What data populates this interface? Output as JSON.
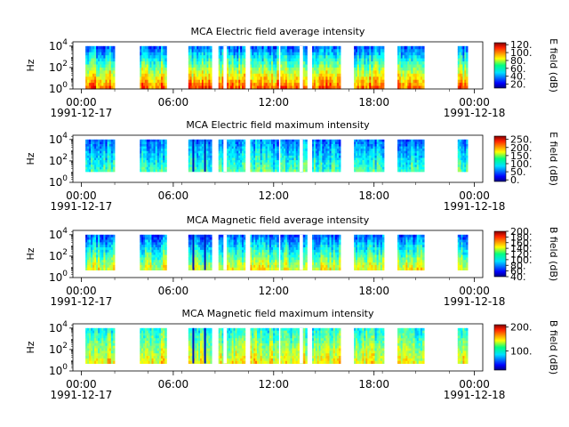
{
  "chart_data": [
    {
      "type": "heatmap",
      "title": "MCA  Electric field average intensity",
      "ylabel": "Hz",
      "y_ticks": [
        {
          "base": "10",
          "exp": "0"
        },
        {
          "base": "10",
          "exp": "2"
        },
        {
          "base": "10",
          "exp": "4"
        }
      ],
      "x_ticks": [
        "00:00",
        "06:00",
        "12:00",
        "18:00",
        "00:00"
      ],
      "x_start_date": "1991-12-17",
      "x_end_date": "1991-12-18",
      "colorbar_label": "E field (dB)",
      "colorbar_ticks": [
        "20.",
        "40.",
        "60.",
        "80.",
        "100.",
        "120."
      ],
      "clim": [
        10,
        125
      ],
      "data_blocks_hours": [
        [
          0.75,
          1.6
        ],
        [
          1.6,
          2.5
        ],
        [
          4.0,
          4.7
        ],
        [
          4.7,
          5.6
        ],
        [
          6.9,
          7.6
        ],
        [
          7.6,
          8.3
        ],
        [
          8.7,
          9.5
        ],
        [
          9.5,
          10.3
        ],
        [
          10.6,
          11.4
        ],
        [
          11.4,
          12.3
        ],
        [
          12.4,
          13.1
        ],
        [
          13.1,
          14.0
        ],
        [
          14.3,
          15.0
        ],
        [
          15.0,
          16.0
        ],
        [
          16.8,
          17.6
        ],
        [
          17.6,
          18.6
        ],
        [
          19.4,
          20.1
        ],
        [
          20.1,
          21.0
        ],
        [
          23.0,
          23.6
        ]
      ],
      "gaps_hours": [
        [
          9.0,
          9.2
        ],
        [
          13.55,
          13.75
        ]
      ],
      "frequency_range_hz": [
        1,
        10000
      ]
    },
    {
      "type": "heatmap",
      "title": "MCA  Electric field maximum intensity",
      "ylabel": "Hz",
      "y_ticks": [
        {
          "base": "10",
          "exp": "0"
        },
        {
          "base": "10",
          "exp": "2"
        },
        {
          "base": "10",
          "exp": "4"
        }
      ],
      "x_ticks": [
        "00:00",
        "06:00",
        "12:00",
        "18:00",
        "00:00"
      ],
      "x_start_date": "1991-12-17",
      "x_end_date": "1991-12-18",
      "colorbar_label": "E field (dB)",
      "colorbar_ticks": [
        "0.",
        "50.",
        "100.",
        "150.",
        "200.",
        "250."
      ],
      "clim": [
        -10,
        270
      ],
      "data_blocks_hours": [
        [
          0.75,
          1.6
        ],
        [
          1.6,
          2.5
        ],
        [
          4.0,
          4.7
        ],
        [
          4.7,
          5.6
        ],
        [
          6.9,
          7.6
        ],
        [
          7.6,
          8.3
        ],
        [
          8.7,
          9.5
        ],
        [
          9.5,
          10.3
        ],
        [
          10.6,
          11.4
        ],
        [
          11.4,
          12.3
        ],
        [
          12.4,
          13.1
        ],
        [
          13.1,
          14.0
        ],
        [
          14.3,
          15.0
        ],
        [
          15.0,
          16.0
        ],
        [
          16.8,
          17.6
        ],
        [
          17.6,
          18.6
        ],
        [
          19.4,
          20.1
        ],
        [
          20.1,
          21.0
        ],
        [
          23.0,
          23.6
        ]
      ],
      "gaps_hours": [
        [
          9.0,
          9.2
        ],
        [
          13.55,
          13.75
        ]
      ],
      "frequency_range_hz": [
        10,
        10000
      ]
    },
    {
      "type": "heatmap",
      "title": "MCA  Magnetic field average intensity",
      "ylabel": "Hz",
      "y_ticks": [
        {
          "base": "10",
          "exp": "0"
        },
        {
          "base": "10",
          "exp": "2"
        },
        {
          "base": "10",
          "exp": "4"
        }
      ],
      "x_ticks": [
        "00:00",
        "06:00",
        "12:00",
        "18:00",
        "00:00"
      ],
      "x_start_date": "1991-12-17",
      "x_end_date": "1991-12-18",
      "colorbar_label": "B field (dB)",
      "colorbar_ticks": [
        "40.",
        "60.",
        "80.",
        "100.",
        "120.",
        "140.",
        "160.",
        "180.",
        "200."
      ],
      "clim": [
        40,
        200
      ],
      "data_blocks_hours": [
        [
          0.75,
          1.6
        ],
        [
          1.6,
          2.5
        ],
        [
          4.0,
          4.7
        ],
        [
          4.7,
          5.6
        ],
        [
          6.9,
          7.6
        ],
        [
          7.6,
          8.3
        ],
        [
          8.7,
          9.5
        ],
        [
          9.5,
          10.3
        ],
        [
          10.6,
          11.4
        ],
        [
          11.4,
          12.3
        ],
        [
          12.4,
          13.1
        ],
        [
          13.1,
          14.0
        ],
        [
          14.3,
          15.0
        ],
        [
          15.0,
          16.0
        ],
        [
          16.8,
          17.6
        ],
        [
          17.6,
          18.6
        ],
        [
          19.4,
          20.1
        ],
        [
          20.1,
          21.0
        ],
        [
          23.0,
          23.6
        ]
      ],
      "gaps_hours": [
        [
          9.0,
          9.2
        ],
        [
          13.55,
          13.75
        ]
      ],
      "frequency_range_hz": [
        5,
        10000
      ]
    },
    {
      "type": "heatmap",
      "title": "MCA  Magnetic field maximum intensity",
      "ylabel": "Hz",
      "y_ticks": [
        {
          "base": "10",
          "exp": "0"
        },
        {
          "base": "10",
          "exp": "2"
        },
        {
          "base": "10",
          "exp": "4"
        }
      ],
      "x_ticks": [
        "00:00",
        "06:00",
        "12:00",
        "18:00",
        "00:00"
      ],
      "x_start_date": "1991-12-17",
      "x_end_date": "1991-12-18",
      "colorbar_label": "B field (dB)",
      "colorbar_ticks": [
        "100.",
        "200."
      ],
      "clim": [
        20,
        210
      ],
      "data_blocks_hours": [
        [
          0.75,
          1.6
        ],
        [
          1.6,
          2.5
        ],
        [
          4.0,
          4.7
        ],
        [
          4.7,
          5.6
        ],
        [
          6.9,
          7.6
        ],
        [
          7.6,
          8.3
        ],
        [
          8.7,
          9.5
        ],
        [
          9.5,
          10.3
        ],
        [
          10.6,
          11.4
        ],
        [
          11.4,
          12.3
        ],
        [
          12.4,
          13.1
        ],
        [
          13.1,
          14.0
        ],
        [
          14.3,
          15.0
        ],
        [
          15.0,
          16.0
        ],
        [
          16.8,
          17.6
        ],
        [
          17.6,
          18.6
        ],
        [
          19.4,
          20.1
        ],
        [
          20.1,
          21.0
        ],
        [
          23.0,
          23.6
        ]
      ],
      "gaps_hours": [
        [
          9.0,
          9.2
        ],
        [
          13.55,
          13.75
        ]
      ],
      "frequency_range_hz": [
        5,
        10000
      ]
    }
  ]
}
